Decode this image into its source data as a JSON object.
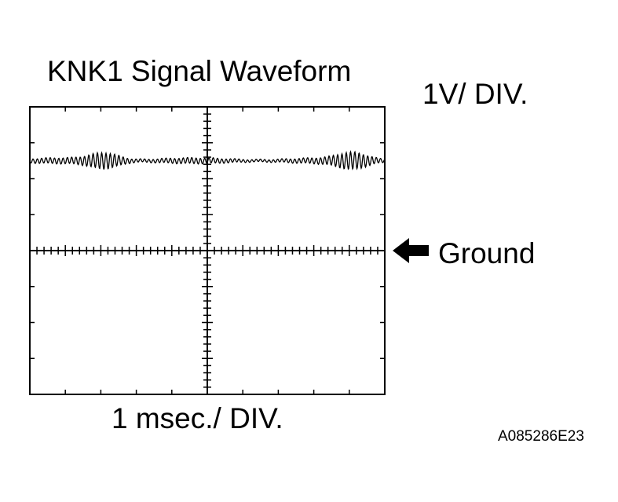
{
  "title": "KNK1 Signal Waveform",
  "vertical_scale": "1V/ DIV.",
  "time_scale": "1 msec./ DIV.",
  "ground_label": "Ground",
  "figure_code": "A085286E23",
  "colors": {
    "ink": "#000000",
    "background": "#ffffff"
  },
  "icons": {
    "ground_pointer": "left-arrow-icon"
  },
  "scope": {
    "h_divisions": 10,
    "v_divisions": 8,
    "minor_ticks_per_division": 5,
    "ground_division_from_top": 4,
    "signal_level_div_above_ground": 2.5,
    "signal_amplitude_div": 0.2,
    "burst_center_divisions": [
      2.1,
      9.1
    ]
  }
}
